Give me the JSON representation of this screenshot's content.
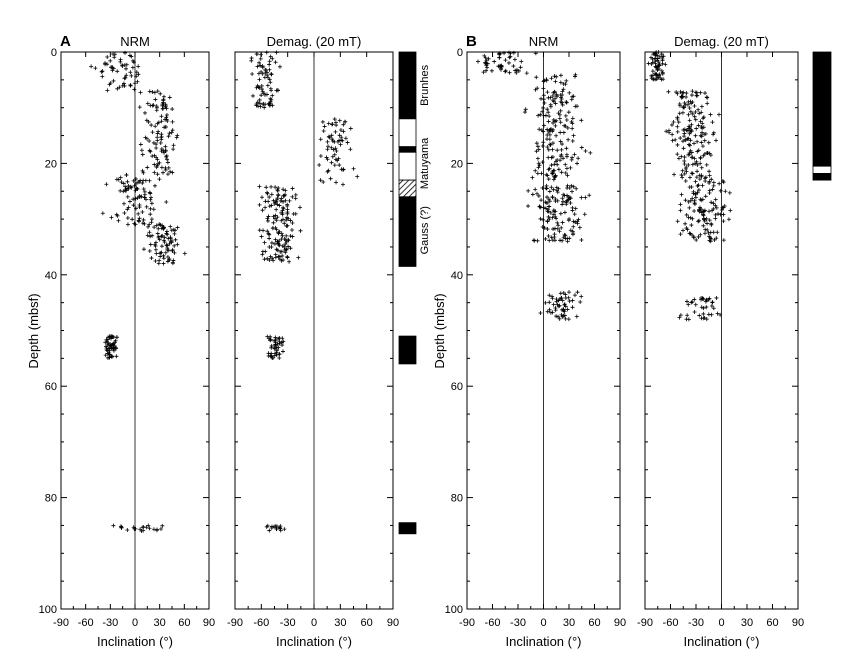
{
  "figure": {
    "panel_letters": [
      "A",
      "B"
    ],
    "ylabel": "Depth (mbsf)",
    "xlabel": "Inclination (°)",
    "panel_titles": [
      "NRM",
      "Demag. (20 mT)",
      "NRM",
      "Demag. (20 mT)"
    ]
  },
  "chart_data": [
    {
      "type": "scatter",
      "panel": "A",
      "title": "NRM",
      "xlabel": "Inclination (°)",
      "ylabel": "Depth (mbsf)",
      "xlim": [
        -90,
        90
      ],
      "ylim": [
        100,
        0
      ],
      "xticks": [
        -90,
        -60,
        -30,
        0,
        30,
        60,
        90
      ],
      "yticks": [
        0,
        20,
        40,
        60,
        80,
        100
      ],
      "zero_line": true,
      "clusters": [
        {
          "depth_range": [
            0,
            7
          ],
          "incl_center": -20,
          "incl_spread": 38,
          "n": 55
        },
        {
          "depth_range": [
            7,
            22
          ],
          "incl_center": 30,
          "incl_spread": 30,
          "n": 110
        },
        {
          "depth_range": [
            22,
            31
          ],
          "incl_center": 0,
          "incl_spread": 45,
          "n": 90
        },
        {
          "depth_range": [
            31,
            38
          ],
          "incl_center": 35,
          "incl_spread": 30,
          "n": 80
        },
        {
          "depth_range": [
            51,
            55
          ],
          "incl_center": -30,
          "incl_spread": 11,
          "n": 55
        },
        {
          "depth_range": [
            85,
            86
          ],
          "incl_center": 5,
          "incl_spread": 45,
          "n": 22
        }
      ]
    },
    {
      "type": "scatter",
      "panel": "A",
      "title": "Demag. (20 mT)",
      "xlabel": "Inclination (°)",
      "xlim": [
        -90,
        90
      ],
      "ylim": [
        100,
        0
      ],
      "xticks": [
        -90,
        -60,
        -30,
        0,
        30,
        60,
        90
      ],
      "yticks": [
        0,
        20,
        40,
        60,
        80,
        100
      ],
      "zero_line": true,
      "clusters": [
        {
          "depth_range": [
            0,
            10
          ],
          "incl_center": -55,
          "incl_spread": 22,
          "n": 75
        },
        {
          "depth_range": [
            12,
            24
          ],
          "incl_center": 25,
          "incl_spread": 30,
          "n": 65
        },
        {
          "depth_range": [
            24,
            38
          ],
          "incl_center": -40,
          "incl_spread": 30,
          "n": 150
        },
        {
          "depth_range": [
            51,
            55
          ],
          "incl_center": -45,
          "incl_spread": 14,
          "n": 45
        },
        {
          "depth_range": [
            85,
            86
          ],
          "incl_center": -40,
          "incl_spread": 20,
          "n": 15
        }
      ]
    },
    {
      "type": "scatter",
      "panel": "B",
      "title": "NRM",
      "xlabel": "Inclination (°)",
      "xlim": [
        -90,
        90
      ],
      "ylim": [
        100,
        0
      ],
      "xticks": [
        -90,
        -60,
        -30,
        0,
        30,
        60,
        90
      ],
      "yticks": [
        0,
        20,
        40,
        60,
        80,
        100
      ],
      "zero_line": true,
      "clusters": [
        {
          "depth_range": [
            0,
            4
          ],
          "incl_center": -45,
          "incl_spread": 40,
          "n": 50
        },
        {
          "depth_range": [
            4,
            23
          ],
          "incl_center": 15,
          "incl_spread": 45,
          "n": 180
        },
        {
          "depth_range": [
            24,
            34
          ],
          "incl_center": 15,
          "incl_spread": 45,
          "n": 130
        },
        {
          "depth_range": [
            43,
            48
          ],
          "incl_center": 20,
          "incl_spread": 30,
          "n": 55
        }
      ]
    },
    {
      "type": "scatter",
      "panel": "B",
      "title": "Demag. (20 mT)",
      "xlabel": "Inclination (°)",
      "xlim": [
        -90,
        90
      ],
      "ylim": [
        100,
        0
      ],
      "xticks": [
        -90,
        -60,
        -30,
        0,
        30,
        60,
        90
      ],
      "yticks": [
        0,
        20,
        40,
        60,
        80,
        100
      ],
      "zero_line": true,
      "clusters": [
        {
          "depth_range": [
            0,
            5
          ],
          "incl_center": -75,
          "incl_spread": 12,
          "n": 60
        },
        {
          "depth_range": [
            7,
            23
          ],
          "incl_center": -35,
          "incl_spread": 40,
          "n": 170
        },
        {
          "depth_range": [
            23,
            34
          ],
          "incl_center": -20,
          "incl_spread": 40,
          "n": 120
        },
        {
          "depth_range": [
            44,
            48
          ],
          "incl_center": -25,
          "incl_spread": 40,
          "n": 40
        }
      ]
    }
  ],
  "polarity_columns": [
    {
      "panel": "A",
      "blocks": [
        {
          "top": 0,
          "bottom": 12,
          "fill": "black"
        },
        {
          "top": 12,
          "bottom": 17,
          "fill": "white"
        },
        {
          "top": 17,
          "bottom": 18,
          "fill": "black"
        },
        {
          "top": 18,
          "bottom": 23,
          "fill": "white"
        },
        {
          "top": 23,
          "bottom": 26,
          "fill": "hatch"
        },
        {
          "top": 26,
          "bottom": 38.5,
          "fill": "black"
        },
        {
          "top": 51,
          "bottom": 56,
          "fill": "black"
        },
        {
          "top": 84.5,
          "bottom": 86.5,
          "fill": "black"
        }
      ],
      "chron_labels": [
        {
          "text": "Brunhes",
          "depth": 6
        },
        {
          "text": "Matuyama",
          "depth": 20
        },
        {
          "text": "Gauss (?)",
          "depth": 32
        }
      ]
    },
    {
      "panel": "B",
      "blocks": [
        {
          "top": 0,
          "bottom": 20.5,
          "fill": "black"
        },
        {
          "top": 20.5,
          "bottom": 21.8,
          "fill": "white"
        },
        {
          "top": 21.8,
          "bottom": 23,
          "fill": "black"
        }
      ]
    }
  ]
}
